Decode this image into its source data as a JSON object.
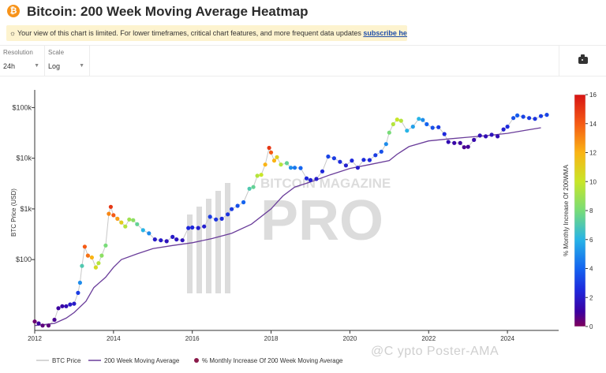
{
  "header": {
    "logo": "₿",
    "title": "Bitcoin: 200 Week Moving Average Heatmap"
  },
  "notice": {
    "icon": "☼",
    "text": "Your view of this chart is limited. For lower timeframes, critical chart features, and more frequent data updates ",
    "link": "subscribe here",
    "end": "."
  },
  "controls": {
    "resolution_label": "Resolution",
    "resolution_value": "24h",
    "scale_label": "Scale",
    "scale_value": "Log",
    "camera_icon": "camera-icon"
  },
  "watermark_pro": "BITCOIN MAGAZINE PRO",
  "overlay_watermark": "@C ypto Poster-AMA",
  "chart_data": {
    "type": "scatter",
    "x_ticks": [
      "2012",
      "2014",
      "2016",
      "2018",
      "2020",
      "2022",
      "2024"
    ],
    "y_tick_labels": [
      "$100",
      "$1k",
      "$10k",
      "$100k"
    ],
    "y_tick_values": [
      100,
      1000,
      10000,
      100000
    ],
    "ylabel": "BTC Price (USD)",
    "y_scale": "log",
    "xlim": [
      2012.0,
      2025.3
    ],
    "ylim": [
      4,
      180000
    ],
    "colorbar": {
      "label": "% Monthly Increase Of 200WMA",
      "ticks": [
        0,
        2,
        4,
        6,
        8,
        10,
        12,
        14,
        16
      ],
      "range": [
        0,
        16
      ]
    },
    "legend": [
      "BTC Price",
      "200 Week Moving Average",
      "% Monthly Increase Of 200 Week Moving Average"
    ],
    "legend_colors": [
      "#c8c8c8",
      "#6a3d9a",
      "#8a1a4a"
    ],
    "price_series": [
      [
        2012.0,
        6,
        0.3
      ],
      [
        2012.1,
        5.5,
        1
      ],
      [
        2012.2,
        5,
        0.5
      ],
      [
        2012.35,
        5,
        0.5
      ],
      [
        2012.5,
        6.5,
        0.8
      ],
      [
        2012.6,
        11,
        1
      ],
      [
        2012.7,
        12,
        1.2
      ],
      [
        2012.8,
        12,
        1.5
      ],
      [
        2012.9,
        13,
        2
      ],
      [
        2013.0,
        13.5,
        2
      ],
      [
        2013.1,
        22,
        3
      ],
      [
        2013.15,
        35,
        5
      ],
      [
        2013.2,
        75,
        7
      ],
      [
        2013.27,
        180,
        14
      ],
      [
        2013.35,
        120,
        13.5
      ],
      [
        2013.45,
        110,
        12
      ],
      [
        2013.55,
        70,
        10.5
      ],
      [
        2013.62,
        85,
        9.5
      ],
      [
        2013.7,
        120,
        8.5
      ],
      [
        2013.8,
        190,
        8
      ],
      [
        2013.88,
        800,
        13
      ],
      [
        2013.93,
        1100,
        15
      ],
      [
        2014.0,
        750,
        14
      ],
      [
        2014.1,
        640,
        12.5
      ],
      [
        2014.2,
        540,
        11
      ],
      [
        2014.3,
        450,
        9.5
      ],
      [
        2014.4,
        620,
        9
      ],
      [
        2014.5,
        600,
        8.5
      ],
      [
        2014.6,
        500,
        7.5
      ],
      [
        2014.75,
        380,
        6
      ],
      [
        2014.9,
        330,
        5
      ],
      [
        2015.05,
        250,
        2
      ],
      [
        2015.2,
        240,
        2
      ],
      [
        2015.35,
        230,
        1.7
      ],
      [
        2015.5,
        280,
        2
      ],
      [
        2015.6,
        250,
        1.8
      ],
      [
        2015.75,
        240,
        1.7
      ],
      [
        2015.9,
        420,
        2.5
      ],
      [
        2016.0,
        430,
        2.5
      ],
      [
        2016.15,
        420,
        2.2
      ],
      [
        2016.3,
        450,
        2.2
      ],
      [
        2016.45,
        700,
        3
      ],
      [
        2016.6,
        620,
        2.8
      ],
      [
        2016.75,
        640,
        2.6
      ],
      [
        2016.9,
        780,
        2.8
      ],
      [
        2017.0,
        990,
        3
      ],
      [
        2017.15,
        1150,
        3.5
      ],
      [
        2017.3,
        1350,
        4
      ],
      [
        2017.45,
        2500,
        7
      ],
      [
        2017.55,
        2700,
        7.5
      ],
      [
        2017.65,
        4500,
        9.5
      ],
      [
        2017.75,
        4700,
        10
      ],
      [
        2017.85,
        7500,
        12
      ],
      [
        2017.95,
        16000,
        15
      ],
      [
        2018.0,
        13000,
        14
      ],
      [
        2018.08,
        9000,
        12
      ],
      [
        2018.15,
        10500,
        11
      ],
      [
        2018.25,
        7500,
        9.5
      ],
      [
        2018.4,
        8000,
        7.5
      ],
      [
        2018.5,
        6500,
        5
      ],
      [
        2018.6,
        6500,
        4.5
      ],
      [
        2018.75,
        6400,
        4
      ],
      [
        2018.9,
        4000,
        2.5
      ],
      [
        2019.0,
        3700,
        2.2
      ],
      [
        2019.15,
        3900,
        2.1
      ],
      [
        2019.3,
        5500,
        2.5
      ],
      [
        2019.45,
        10800,
        3.2
      ],
      [
        2019.6,
        10000,
        3
      ],
      [
        2019.75,
        8500,
        2.6
      ],
      [
        2019.9,
        7200,
        2.2
      ],
      [
        2020.05,
        9000,
        2.5
      ],
      [
        2020.2,
        6500,
        2.1
      ],
      [
        2020.35,
        9300,
        2.6
      ],
      [
        2020.5,
        9200,
        2.5
      ],
      [
        2020.65,
        11500,
        3
      ],
      [
        2020.8,
        13500,
        3.5
      ],
      [
        2020.92,
        19000,
        5
      ],
      [
        2021.0,
        32000,
        8
      ],
      [
        2021.1,
        47000,
        9.5
      ],
      [
        2021.2,
        58000,
        10
      ],
      [
        2021.3,
        55000,
        9.5
      ],
      [
        2021.45,
        35000,
        6
      ],
      [
        2021.6,
        42000,
        5.5
      ],
      [
        2021.75,
        60000,
        6
      ],
      [
        2021.85,
        57000,
        5
      ],
      [
        2021.95,
        47000,
        4
      ],
      [
        2022.1,
        40000,
        3.5
      ],
      [
        2022.25,
        41000,
        3
      ],
      [
        2022.4,
        30000,
        2.5
      ],
      [
        2022.5,
        21000,
        1.5
      ],
      [
        2022.65,
        20000,
        1.2
      ],
      [
        2022.8,
        20000,
        1
      ],
      [
        2022.9,
        16500,
        0.8
      ],
      [
        2023.0,
        16800,
        0.9
      ],
      [
        2023.15,
        23000,
        1.3
      ],
      [
        2023.3,
        28000,
        1.6
      ],
      [
        2023.45,
        27000,
        1.5
      ],
      [
        2023.6,
        29000,
        1.7
      ],
      [
        2023.75,
        27000,
        1.5
      ],
      [
        2023.9,
        37000,
        2.2
      ],
      [
        2024.0,
        42000,
        2.6
      ],
      [
        2024.15,
        62000,
        3.5
      ],
      [
        2024.25,
        70000,
        3.8
      ],
      [
        2024.4,
        66000,
        3.2
      ],
      [
        2024.55,
        62000,
        3
      ],
      [
        2024.7,
        60000,
        2.8
      ],
      [
        2024.85,
        68000,
        3
      ],
      [
        2025.0,
        72000,
        3.2
      ]
    ],
    "wma_series": [
      [
        2012.0,
        5
      ],
      [
        2012.5,
        5.5
      ],
      [
        2012.8,
        7
      ],
      [
        2013.0,
        9
      ],
      [
        2013.3,
        15
      ],
      [
        2013.5,
        28
      ],
      [
        2013.8,
        45
      ],
      [
        2014.0,
        70
      ],
      [
        2014.2,
        100
      ],
      [
        2014.6,
        130
      ],
      [
        2015.0,
        165
      ],
      [
        2015.5,
        190
      ],
      [
        2016.0,
        215
      ],
      [
        2016.5,
        260
      ],
      [
        2017.0,
        330
      ],
      [
        2017.5,
        500
      ],
      [
        2018.0,
        1000
      ],
      [
        2018.3,
        1800
      ],
      [
        2018.6,
        2700
      ],
      [
        2019.0,
        3400
      ],
      [
        2019.5,
        4700
      ],
      [
        2020.0,
        6300
      ],
      [
        2020.5,
        7500
      ],
      [
        2021.0,
        9000
      ],
      [
        2021.2,
        12000
      ],
      [
        2021.5,
        17000
      ],
      [
        2022.0,
        22000
      ],
      [
        2022.5,
        24000
      ],
      [
        2023.0,
        26000
      ],
      [
        2023.5,
        28000
      ],
      [
        2024.0,
        31000
      ],
      [
        2024.5,
        36000
      ],
      [
        2024.85,
        40000
      ]
    ]
  }
}
